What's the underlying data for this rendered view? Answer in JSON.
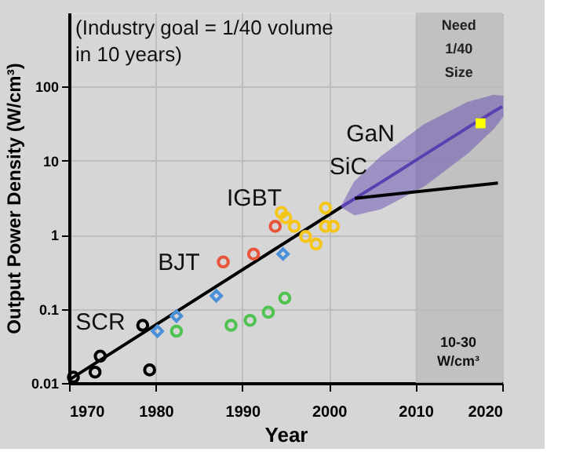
{
  "chart_data": {
    "type": "scatter",
    "xlabel": "Year",
    "ylabel": "Output Power Density (W/cm³)",
    "series": [
      {
        "type": "line",
        "color": "#000000",
        "x": [
          1970,
          2001.5
        ],
        "values": [
          0.011,
          2.4
        ],
        "marker": "none",
        "line_style": "solid"
      },
      {
        "type": "line",
        "color": "#5a3fb0",
        "x": [
          2001.5,
          2003,
          2006,
          2011,
          2016,
          2019,
          2020
        ],
        "values": [
          2.4,
          3.1,
          5.1,
          12,
          28,
          46,
          54
        ],
        "lower": [
          2.4,
          1.9,
          2.3,
          4.7,
          13,
          28,
          40
        ],
        "upper": [
          2.4,
          5.1,
          11,
          30,
          60,
          75,
          73
        ],
        "marker": "none",
        "line_style": "solid"
      },
      {
        "type": "line",
        "color": "#000000",
        "x": [
          2003,
          2019.5
        ],
        "values": [
          3.1,
          5.0
        ],
        "marker": "none",
        "line_style": "solid"
      },
      {
        "color": "#000000",
        "x": [
          1970.5,
          1973,
          1973.6,
          1978.5,
          1979.3
        ],
        "values": [
          0.012,
          0.014,
          0.023,
          0.06,
          0.015
        ],
        "marker": "circle"
      },
      {
        "color": "#4a90d9",
        "x": [
          1980.2,
          1982.4,
          1987,
          1994.7
        ],
        "values": [
          0.05,
          0.08,
          0.15,
          0.55
        ],
        "marker": "diamond"
      },
      {
        "color": "#e8553a",
        "x": [
          1987.8,
          1991.3,
          1993.8
        ],
        "values": [
          0.43,
          0.55,
          1.3
        ],
        "marker": "circle"
      },
      {
        "color": "#4fc24f",
        "x": [
          1982.4,
          1988.7,
          1990.9,
          1993,
          1994.9
        ],
        "values": [
          0.05,
          0.06,
          0.07,
          0.09,
          0.14
        ],
        "marker": "circle"
      },
      {
        "color": "#f5c518",
        "x": [
          1994.5,
          1995,
          1996,
          1997.3,
          1998.5,
          1999.6,
          1999.6,
          2000.5
        ],
        "values": [
          2.0,
          1.7,
          1.3,
          0.95,
          0.75,
          1.3,
          2.3,
          1.3
        ],
        "marker": "circle"
      },
      {
        "color": "#ffff00",
        "x": [
          2017.5
        ],
        "values": [
          32
        ],
        "marker": "square"
      }
    ],
    "xlim": [
      1970,
      2020
    ],
    "xticks": [
      1970,
      1980,
      1990,
      2000,
      2010,
      2020
    ],
    "ylim": [
      0.01,
      1000
    ],
    "yticks": [
      0.01,
      0.1,
      1,
      10,
      100
    ],
    "log": "y",
    "grid": true,
    "bands": [
      {
        "axis": "x",
        "from": 2010,
        "to": 2020,
        "label": "Need 1/40 Size",
        "color": "#bcbcbc"
      }
    ],
    "annotations": [
      "(Industry goal = 1/40 volume in 10 years)",
      "SCR",
      "BJT",
      "IGBT",
      "SiC",
      "GaN",
      "10-30 W/cm³"
    ]
  }
}
